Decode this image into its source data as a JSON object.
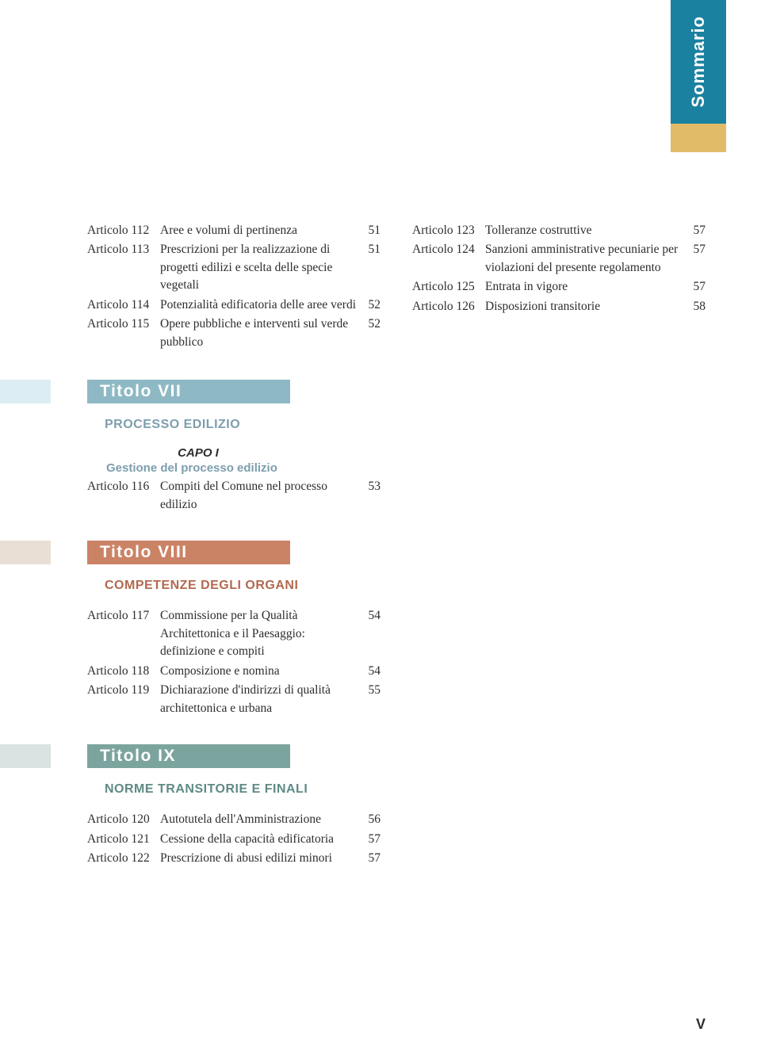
{
  "side_tab": "Sommario",
  "page_marker": "V",
  "colors": {
    "tab_bg": "#1b81a0",
    "tab_stub": "#e1bb68",
    "title7_stub": "#dceef3",
    "title7_main": "#8eb9c4",
    "title7_text": "#7d9ead",
    "title8_stub": "#eadfd5",
    "title8_main": "#cb8366",
    "title8_text": "#b2694f",
    "title9_stub": "#d8e3e2",
    "title9_main": "#7ca49f",
    "title9_text": "#5f8a85"
  },
  "left_top": [
    {
      "ah": "Articolo 112",
      "desc": "Aree e volumi di pertinenza",
      "pg": "51"
    },
    {
      "ah": "Articolo 113",
      "desc": "Prescrizioni per la realizzazione di progetti edilizi e scelta delle specie vegetali",
      "pg": "51"
    },
    {
      "ah": "Articolo 114",
      "desc": "Potenzialità edificatoria delle aree verdi",
      "pg": "52"
    },
    {
      "ah": "Articolo 115",
      "desc": "Opere pubbliche e interventi sul verde pubblico",
      "pg": "52"
    }
  ],
  "right_top": [
    {
      "ah": "Articolo 123",
      "desc": "Tolleranze costruttive",
      "pg": "57"
    },
    {
      "ah": "Articolo 124",
      "desc": "Sanzioni amministrative pecuniarie per  violazioni del presente regolamento",
      "pg": "57"
    },
    {
      "ah": "Articolo 125",
      "desc": "Entrata in vigore",
      "pg": "57"
    },
    {
      "ah": "Articolo 126",
      "desc": "Disposizioni transitorie",
      "pg": "58"
    }
  ],
  "title7": {
    "label": "Titolo VII",
    "section": "PROCESSO EDILIZIO",
    "capo": "CAPO I",
    "sub": "Gestione del processo edilizio"
  },
  "art7": [
    {
      "ah": "Articolo  116",
      "desc": "Compiti del Comune nel processo edilizio",
      "pg": "53"
    }
  ],
  "title8": {
    "label": "Titolo VIII",
    "section": "COMPETENZE DEGLI ORGANI"
  },
  "art8": [
    {
      "ah": "Articolo 117",
      "desc": "Commissione per la Qualità Architettonica e il Paesaggio: definizione e compiti",
      "pg": "54"
    },
    {
      "ah": "Articolo 118",
      "desc": "Composizione e nomina",
      "pg": "54"
    },
    {
      "ah": "Articolo 119",
      "desc": "Dichiarazione d'indirizzi di qualità architettonica e urbana",
      "pg": "55"
    }
  ],
  "title9": {
    "label": "Titolo IX",
    "section": "NORME TRANSITORIE E FINALI"
  },
  "art9": [
    {
      "ah": "Articolo 120",
      "desc": "Autotutela dell'Amministrazione",
      "pg": "56"
    },
    {
      "ah": "Articolo 121",
      "desc": "Cessione della capacità edificatoria",
      "pg": "57"
    },
    {
      "ah": "Articolo 122",
      "desc": "Prescrizione di abusi edilizi minori",
      "pg": "57"
    }
  ]
}
